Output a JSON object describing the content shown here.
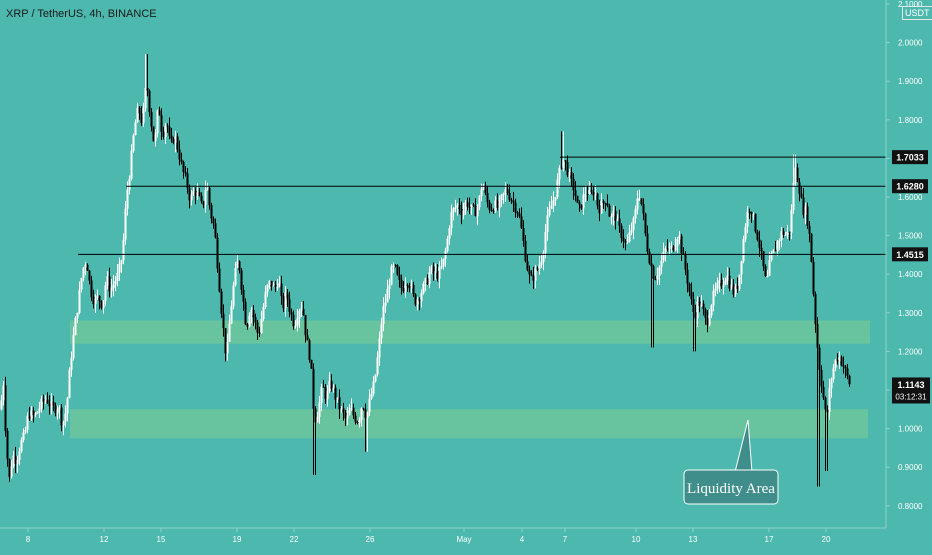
{
  "header": {
    "title": "XRP / TetherUS, 4h, BINANCE",
    "quote_currency": "USDT"
  },
  "annotation": {
    "text": "Liquidity Area"
  },
  "colors": {
    "background": "#4db8ad",
    "zone": "#6cc59c",
    "candle_up": "#ffffff",
    "candle_down": "#000000",
    "callout_fill": "#3f8e8b"
  },
  "chart_data": {
    "type": "candlestick",
    "title": "XRP / TetherUS, 4h, BINANCE",
    "ylim": [
      0.75,
      2.1
    ],
    "y_ticks": [
      "2.1000",
      "2.0000",
      "1.9000",
      "1.8000",
      "1.7000",
      "1.6000",
      "1.5000",
      "1.4000",
      "1.3000",
      "1.2000",
      "1.1000",
      "1.0000",
      "0.9000",
      "0.8000"
    ],
    "x_ticks": [
      "8",
      "12",
      "15",
      "19",
      "22",
      "26",
      "May",
      "4",
      "7",
      "10",
      "13",
      "17",
      "20"
    ],
    "horizontal_levels": [
      {
        "price": 1.7033,
        "label": "1.7033"
      },
      {
        "price": 1.628,
        "label": "1.6280"
      },
      {
        "price": 1.4515,
        "label": "1.4515"
      }
    ],
    "zones": [
      {
        "low": 1.22,
        "high": 1.28
      },
      {
        "low": 0.975,
        "high": 1.05
      }
    ],
    "last_price": {
      "price": 1.1143,
      "label": "1.1143",
      "countdown": "03:12:31"
    },
    "price_path": [
      [
        0,
        1.05
      ],
      [
        3,
        1.12
      ],
      [
        6,
        0.95
      ],
      [
        9,
        0.87
      ],
      [
        12,
        0.93
      ],
      [
        16,
        0.92
      ],
      [
        20,
        0.96
      ],
      [
        24,
        0.98
      ],
      [
        28,
        1.04
      ],
      [
        34,
        1.03
      ],
      [
        40,
        1.06
      ],
      [
        46,
        1.08
      ],
      [
        52,
        1.05
      ],
      [
        58,
        1.06
      ],
      [
        62,
        1.01
      ],
      [
        66,
        1.05
      ],
      [
        70,
        1.17
      ],
      [
        74,
        1.26
      ],
      [
        78,
        1.33
      ],
      [
        82,
        1.41
      ],
      [
        86,
        1.44
      ],
      [
        90,
        1.36
      ],
      [
        94,
        1.33
      ],
      [
        98,
        1.34
      ],
      [
        102,
        1.32
      ],
      [
        106,
        1.39
      ],
      [
        110,
        1.36
      ],
      [
        114,
        1.38
      ],
      [
        118,
        1.4
      ],
      [
        122,
        1.45
      ],
      [
        126,
        1.6
      ],
      [
        130,
        1.68
      ],
      [
        134,
        1.78
      ],
      [
        138,
        1.83
      ],
      [
        142,
        1.79
      ],
      [
        146,
        1.9
      ],
      [
        150,
        1.81
      ],
      [
        154,
        1.73
      ],
      [
        158,
        1.84
      ],
      [
        162,
        1.76
      ],
      [
        166,
        1.8
      ],
      [
        170,
        1.73
      ],
      [
        174,
        1.76
      ],
      [
        178,
        1.72
      ],
      [
        182,
        1.67
      ],
      [
        186,
        1.64
      ],
      [
        190,
        1.59
      ],
      [
        194,
        1.62
      ],
      [
        198,
        1.6
      ],
      [
        202,
        1.57
      ],
      [
        206,
        1.64
      ],
      [
        210,
        1.56
      ],
      [
        214,
        1.52
      ],
      [
        218,
        1.4
      ],
      [
        222,
        1.28
      ],
      [
        226,
        1.18
      ],
      [
        230,
        1.3
      ],
      [
        234,
        1.39
      ],
      [
        238,
        1.44
      ],
      [
        242,
        1.35
      ],
      [
        246,
        1.26
      ],
      [
        250,
        1.32
      ],
      [
        254,
        1.28
      ],
      [
        258,
        1.24
      ],
      [
        262,
        1.3
      ],
      [
        266,
        1.36
      ],
      [
        270,
        1.38
      ],
      [
        274,
        1.36
      ],
      [
        278,
        1.39
      ],
      [
        282,
        1.31
      ],
      [
        286,
        1.35
      ],
      [
        290,
        1.3
      ],
      [
        294,
        1.27
      ],
      [
        298,
        1.31
      ],
      [
        302,
        1.32
      ],
      [
        306,
        1.23
      ],
      [
        310,
        1.18
      ],
      [
        314,
        1.02
      ],
      [
        318,
        1.05
      ],
      [
        322,
        1.11
      ],
      [
        326,
        1.08
      ],
      [
        330,
        1.12
      ],
      [
        334,
        1.09
      ],
      [
        338,
        1.06
      ],
      [
        342,
        1.04
      ],
      [
        346,
        1.02
      ],
      [
        350,
        1.05
      ],
      [
        354,
        1.03
      ],
      [
        358,
        1.02
      ],
      [
        362,
        1.07
      ],
      [
        366,
        1.03
      ],
      [
        370,
        1.08
      ],
      [
        374,
        1.12
      ],
      [
        378,
        1.2
      ],
      [
        382,
        1.3
      ],
      [
        386,
        1.34
      ],
      [
        390,
        1.4
      ],
      [
        394,
        1.42
      ],
      [
        398,
        1.38
      ],
      [
        402,
        1.36
      ],
      [
        406,
        1.39
      ],
      [
        410,
        1.37
      ],
      [
        414,
        1.33
      ],
      [
        418,
        1.34
      ],
      [
        422,
        1.36
      ],
      [
        426,
        1.38
      ],
      [
        430,
        1.41
      ],
      [
        434,
        1.4
      ],
      [
        438,
        1.4
      ],
      [
        442,
        1.42
      ],
      [
        446,
        1.47
      ],
      [
        450,
        1.55
      ],
      [
        454,
        1.57
      ],
      [
        458,
        1.58
      ],
      [
        462,
        1.56
      ],
      [
        466,
        1.59
      ],
      [
        470,
        1.57
      ],
      [
        474,
        1.56
      ],
      [
        478,
        1.58
      ],
      [
        482,
        1.64
      ],
      [
        486,
        1.59
      ],
      [
        490,
        1.57
      ],
      [
        494,
        1.58
      ],
      [
        498,
        1.57
      ],
      [
        502,
        1.6
      ],
      [
        506,
        1.62
      ],
      [
        510,
        1.6
      ],
      [
        514,
        1.58
      ],
      [
        518,
        1.56
      ],
      [
        522,
        1.5
      ],
      [
        526,
        1.43
      ],
      [
        530,
        1.38
      ],
      [
        534,
        1.4
      ],
      [
        538,
        1.42
      ],
      [
        542,
        1.45
      ],
      [
        546,
        1.53
      ],
      [
        550,
        1.57
      ],
      [
        554,
        1.6
      ],
      [
        558,
        1.65
      ],
      [
        562,
        1.7
      ],
      [
        566,
        1.68
      ],
      [
        570,
        1.64
      ],
      [
        574,
        1.62
      ],
      [
        578,
        1.56
      ],
      [
        582,
        1.59
      ],
      [
        586,
        1.62
      ],
      [
        590,
        1.6
      ],
      [
        594,
        1.62
      ],
      [
        598,
        1.57
      ],
      [
        602,
        1.58
      ],
      [
        606,
        1.6
      ],
      [
        610,
        1.54
      ],
      [
        614,
        1.56
      ],
      [
        618,
        1.52
      ],
      [
        622,
        1.5
      ],
      [
        626,
        1.47
      ],
      [
        630,
        1.51
      ],
      [
        634,
        1.54
      ],
      [
        638,
        1.62
      ],
      [
        642,
        1.57
      ],
      [
        646,
        1.48
      ],
      [
        650,
        1.43
      ],
      [
        654,
        1.39
      ],
      [
        658,
        1.41
      ],
      [
        662,
        1.44
      ],
      [
        666,
        1.47
      ],
      [
        670,
        1.46
      ],
      [
        674,
        1.48
      ],
      [
        678,
        1.51
      ],
      [
        682,
        1.45
      ],
      [
        686,
        1.4
      ],
      [
        690,
        1.34
      ],
      [
        694,
        1.29
      ],
      [
        698,
        1.33
      ],
      [
        702,
        1.31
      ],
      [
        706,
        1.27
      ],
      [
        710,
        1.32
      ],
      [
        714,
        1.35
      ],
      [
        718,
        1.37
      ],
      [
        722,
        1.38
      ],
      [
        726,
        1.4
      ],
      [
        730,
        1.37
      ],
      [
        734,
        1.35
      ],
      [
        738,
        1.38
      ],
      [
        742,
        1.47
      ],
      [
        746,
        1.55
      ],
      [
        750,
        1.58
      ],
      [
        754,
        1.53
      ],
      [
        758,
        1.49
      ],
      [
        762,
        1.43
      ],
      [
        766,
        1.37
      ],
      [
        770,
        1.44
      ],
      [
        774,
        1.46
      ],
      [
        778,
        1.49
      ],
      [
        782,
        1.51
      ],
      [
        786,
        1.5
      ],
      [
        790,
        1.52
      ],
      [
        794,
        1.68
      ],
      [
        798,
        1.64
      ],
      [
        802,
        1.57
      ],
      [
        806,
        1.56
      ],
      [
        810,
        1.48
      ],
      [
        814,
        1.31
      ],
      [
        818,
        1.18
      ],
      [
        822,
        1.1
      ],
      [
        826,
        1.02
      ],
      [
        830,
        1.12
      ],
      [
        834,
        1.17
      ],
      [
        838,
        1.19
      ],
      [
        842,
        1.17
      ],
      [
        846,
        1.14
      ],
      [
        850,
        1.11
      ]
    ]
  }
}
